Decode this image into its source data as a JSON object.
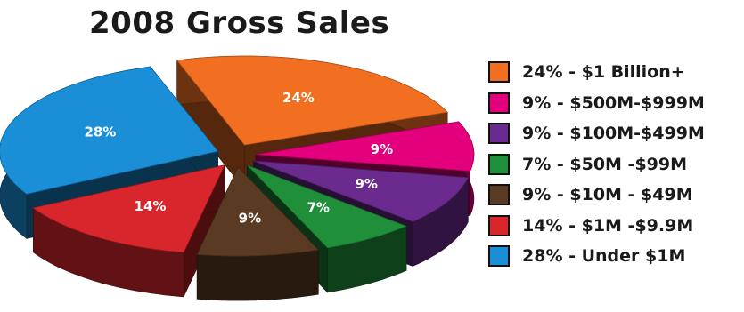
{
  "chart_data": {
    "type": "pie",
    "title": "2008 Gross Sales",
    "slices": [
      {
        "label": "24% - $1 Billion+",
        "value": 24,
        "value_label": "24%",
        "color": "#f26f21"
      },
      {
        "label": "9% - $500M-$999M",
        "value": 9,
        "value_label": "9%",
        "color": "#e4007c"
      },
      {
        "label": "9% - $100M-$499M",
        "value": 9,
        "value_label": "9%",
        "color": "#6a2a8e"
      },
      {
        "label": "7% - $50M -$99M",
        "value": 7,
        "value_label": "7%",
        "color": "#1f8f3a"
      },
      {
        "label": "9% - $10M - $49M",
        "value": 9,
        "value_label": "9%",
        "color": "#5a3a22"
      },
      {
        "label": "14% - $1M -$9.9M",
        "value": 14,
        "value_label": "14%",
        "color": "#d9262c"
      },
      {
        "label": "28% - Under $1M",
        "value": 28,
        "value_label": "28%",
        "color": "#1a8fd8"
      }
    ],
    "legend_placement": "right"
  }
}
